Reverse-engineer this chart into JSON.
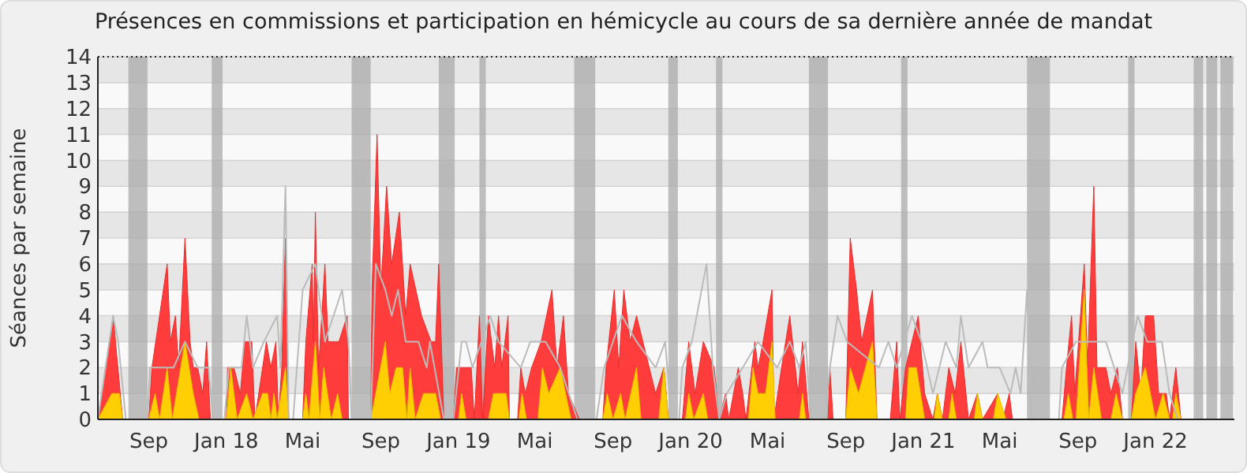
{
  "chart_data": {
    "type": "area",
    "title": "Présences en commissions et participation en hémicycle au cours de sa dernière année de mandat",
    "ylabel": "Séances par semaine",
    "xlim": [
      "2017-06-13",
      "2022-05-05"
    ],
    "xticks": [
      {
        "value": "2017-09-01",
        "label": "Sep"
      },
      {
        "value": "2018-01-01",
        "label": "Jan 18"
      },
      {
        "value": "2018-05-01",
        "label": "Mai"
      },
      {
        "value": "2018-09-01",
        "label": "Sep"
      },
      {
        "value": "2019-01-01",
        "label": "Jan 19"
      },
      {
        "value": "2019-05-01",
        "label": "Mai"
      },
      {
        "value": "2019-09-01",
        "label": "Sep"
      },
      {
        "value": "2020-01-01",
        "label": "Jan 20"
      },
      {
        "value": "2020-05-01",
        "label": "Mai"
      },
      {
        "value": "2020-09-01",
        "label": "Sep"
      },
      {
        "value": "2021-01-01",
        "label": "Jan 21"
      },
      {
        "value": "2021-05-01",
        "label": "Mai"
      },
      {
        "value": "2021-09-01",
        "label": "Sep"
      },
      {
        "value": "2022-01-01",
        "label": "Jan 22"
      }
    ],
    "ylim": [
      0,
      14
    ],
    "yticks": [
      0,
      1,
      2,
      3,
      4,
      5,
      6,
      7,
      8,
      9,
      10,
      11,
      12,
      13,
      14
    ],
    "grid": "y",
    "bands": [
      {
        "axis": "x",
        "from": "2017-07-31",
        "to": "2017-08-30",
        "color": "#aaaaaa"
      },
      {
        "axis": "x",
        "from": "2017-12-09",
        "to": "2017-12-26",
        "color": "#aaaaaa"
      },
      {
        "axis": "x",
        "from": "2018-07-17",
        "to": "2018-08-16",
        "color": "#aaaaaa"
      },
      {
        "axis": "x",
        "from": "2018-12-01",
        "to": "2018-12-26",
        "color": "#aaaaaa"
      },
      {
        "axis": "x",
        "from": "2019-02-03",
        "to": "2019-02-13",
        "color": "#aaaaaa"
      },
      {
        "axis": "x",
        "from": "2019-07-02",
        "to": "2019-08-04",
        "color": "#aaaaaa"
      },
      {
        "axis": "x",
        "from": "2019-11-27",
        "to": "2019-12-12",
        "color": "#aaaaaa"
      },
      {
        "axis": "x",
        "from": "2020-02-10",
        "to": "2020-02-20",
        "color": "#aaaaaa"
      },
      {
        "axis": "x",
        "from": "2020-07-05",
        "to": "2020-08-04",
        "color": "#aaaaaa"
      },
      {
        "axis": "x",
        "from": "2020-11-27",
        "to": "2020-12-07",
        "color": "#aaaaaa"
      },
      {
        "axis": "x",
        "from": "2021-06-13",
        "to": "2021-07-19",
        "color": "#aaaaaa"
      },
      {
        "axis": "x",
        "from": "2021-11-19",
        "to": "2021-11-29",
        "color": "#aaaaaa"
      },
      {
        "axis": "x",
        "from": "2022-03-02",
        "to": "2022-03-17",
        "color": "#aaaaaa"
      },
      {
        "axis": "x",
        "from": "2022-03-22",
        "to": "2022-04-08",
        "color": "#aaaaaa"
      },
      {
        "axis": "x",
        "from": "2022-04-13",
        "to": "2022-05-03",
        "color": "#aaaaaa"
      }
    ],
    "series": [
      {
        "color": "#ff3333",
        "x": [
          "2017-06-13",
          "2017-07-07",
          "2017-07-22",
          "2017-09-01",
          "2017-09-06",
          "2017-09-30",
          "2017-10-05",
          "2017-10-13",
          "2017-10-18",
          "2017-10-28",
          "2017-11-05",
          "2017-11-10",
          "2017-11-17",
          "2017-11-25",
          "2017-12-01",
          "2017-12-07",
          "2018-01-01",
          "2018-01-03",
          "2018-01-13",
          "2018-01-23",
          "2018-01-30",
          "2018-02-10",
          "2018-02-15",
          "2018-02-27",
          "2018-03-05",
          "2018-03-12",
          "2018-03-20",
          "2018-03-24",
          "2018-03-29",
          "2018-04-04",
          "2018-04-09",
          "2018-05-01",
          "2018-05-06",
          "2018-05-16",
          "2018-05-18",
          "2018-05-21",
          "2018-05-26",
          "2018-06-05",
          "2018-06-10",
          "2018-06-27",
          "2018-07-10",
          "2018-07-12",
          "2018-08-16",
          "2018-08-18",
          "2018-08-26",
          "2018-09-01",
          "2018-09-10",
          "2018-09-18",
          "2018-09-30",
          "2018-10-10",
          "2018-10-17",
          "2018-11-04",
          "2018-11-19",
          "2018-11-26",
          "2018-12-01",
          "2018-12-09",
          "2018-12-24",
          "2018-12-29",
          "2019-01-06",
          "2019-01-21",
          "2019-01-26",
          "2019-02-03",
          "2019-02-08",
          "2019-02-17",
          "2019-02-27",
          "2019-03-05",
          "2019-03-10",
          "2019-03-20",
          "2019-03-22",
          "2019-04-04",
          "2019-04-09",
          "2019-04-16",
          "2019-04-26",
          "2019-05-11",
          "2019-05-28",
          "2019-06-05",
          "2019-06-15",
          "2019-06-23",
          "2019-07-10",
          "2019-08-16",
          "2019-08-21",
          "2019-09-03",
          "2019-09-10",
          "2019-09-18",
          "2019-09-28",
          "2019-10-08",
          "2019-10-18",
          "2019-11-07",
          "2019-11-20",
          "2019-11-27",
          "2019-12-19",
          "2019-12-29",
          "2020-01-08",
          "2020-01-21",
          "2020-02-07",
          "2020-02-15",
          "2020-02-25",
          "2020-03-01",
          "2020-03-16",
          "2020-03-23",
          "2020-03-28",
          "2020-04-11",
          "2020-04-16",
          "2020-04-24",
          "2020-05-08",
          "2020-05-11",
          "2020-05-23",
          "2020-06-05",
          "2020-06-18",
          "2020-06-25",
          "2020-07-05",
          "2020-08-04",
          "2020-08-07",
          "2020-08-12",
          "2020-09-01",
          "2020-09-08",
          "2020-09-18",
          "2020-09-26",
          "2020-10-13",
          "2020-10-20",
          "2020-11-10",
          "2020-11-20",
          "2020-11-25",
          "2020-12-04",
          "2020-12-24",
          "2021-01-03",
          "2021-01-16",
          "2021-01-23",
          "2021-01-31",
          "2021-02-10",
          "2021-02-20",
          "2021-03-01",
          "2021-03-13",
          "2021-03-27",
          "2021-04-04",
          "2021-04-28",
          "2021-05-06",
          "2021-05-16",
          "2021-05-21",
          "2021-08-07",
          "2021-08-14",
          "2021-08-22",
          "2021-08-27",
          "2021-09-11",
          "2021-09-16",
          "2021-09-26",
          "2021-10-01",
          "2021-10-15",
          "2021-10-23",
          "2021-11-02",
          "2021-11-10",
          "2021-11-24",
          "2021-12-01",
          "2021-12-09",
          "2021-12-16",
          "2021-12-29",
          "2022-01-06",
          "2022-01-18",
          "2022-01-23",
          "2022-02-02",
          "2022-02-10",
          "2022-05-05"
        ],
        "values": [
          0,
          4,
          0,
          0,
          2,
          6,
          3,
          4,
          2,
          7,
          3,
          2,
          2,
          1,
          3,
          0,
          0,
          2,
          2,
          1,
          3,
          3,
          0,
          2,
          3,
          2,
          3,
          0,
          2,
          7,
          0,
          0,
          3,
          6,
          3,
          8,
          2,
          6,
          3,
          3,
          4,
          0,
          0,
          5,
          11,
          5,
          9,
          6,
          8,
          4,
          6,
          4,
          3,
          3,
          6,
          0,
          0,
          2,
          2,
          2,
          0,
          4,
          0,
          4,
          2,
          4,
          2,
          4,
          0,
          0,
          2,
          1,
          2,
          3,
          5,
          2,
          4,
          1,
          0,
          0,
          2,
          5,
          2,
          5,
          3,
          4,
          3,
          1,
          2,
          0,
          0,
          3,
          1,
          3,
          2,
          0,
          1,
          0,
          2,
          1,
          0,
          3,
          2,
          3,
          5,
          0,
          2,
          4,
          1,
          3,
          0,
          0,
          2,
          0,
          0,
          7,
          5,
          3,
          5,
          0,
          0,
          3,
          0,
          2,
          4,
          1,
          0,
          1,
          0,
          2,
          1,
          3,
          0,
          1,
          0,
          1,
          0,
          1,
          0,
          0,
          2,
          4,
          1,
          6,
          2,
          9,
          2,
          2,
          1,
          2,
          0,
          0,
          3,
          1,
          4,
          4,
          1,
          1,
          0,
          2,
          0,
          0
        ]
      },
      {
        "color": "#ffd700",
        "x": [
          "2017-06-13",
          "2017-07-05",
          "2017-07-17",
          "2017-07-22",
          "2017-09-01",
          "2017-09-11",
          "2017-09-18",
          "2017-09-30",
          "2017-10-08",
          "2017-10-28",
          "2017-11-10",
          "2017-11-19",
          "2018-01-01",
          "2018-01-08",
          "2018-01-18",
          "2018-02-02",
          "2018-02-12",
          "2018-02-27",
          "2018-03-07",
          "2018-03-12",
          "2018-03-17",
          "2018-03-22",
          "2018-04-04",
          "2018-04-09",
          "2018-05-01",
          "2018-05-06",
          "2018-05-11",
          "2018-05-21",
          "2018-05-28",
          "2018-06-03",
          "2018-06-15",
          "2018-06-25",
          "2018-07-02",
          "2018-08-16",
          "2018-08-24",
          "2018-09-08",
          "2018-09-15",
          "2018-09-25",
          "2018-10-05",
          "2018-10-12",
          "2018-10-17",
          "2018-10-25",
          "2018-11-07",
          "2018-11-26",
          "2018-12-04",
          "2019-01-01",
          "2019-01-06",
          "2019-01-13",
          "2019-02-17",
          "2019-02-25",
          "2019-03-17",
          "2019-03-22",
          "2019-04-06",
          "2019-04-11",
          "2019-04-18",
          "2019-05-06",
          "2019-05-13",
          "2019-05-23",
          "2019-06-10",
          "2019-06-27",
          "2019-08-16",
          "2019-08-23",
          "2019-09-01",
          "2019-09-13",
          "2019-09-20",
          "2019-10-08",
          "2019-10-15",
          "2019-11-12",
          "2019-11-20",
          "2019-11-27",
          "2019-12-24",
          "2019-12-29",
          "2020-01-06",
          "2020-01-21",
          "2020-01-28",
          "2020-04-01",
          "2020-04-08",
          "2020-04-16",
          "2020-04-28",
          "2020-05-08",
          "2020-05-13",
          "2020-06-20",
          "2020-06-25",
          "2020-06-30",
          "2020-09-01",
          "2020-09-08",
          "2020-09-21",
          "2020-10-13",
          "2020-10-20",
          "2020-12-04",
          "2020-12-09",
          "2020-12-21",
          "2021-01-03",
          "2021-01-18",
          "2021-01-23",
          "2021-01-31",
          "2021-02-10",
          "2021-02-15",
          "2021-02-22",
          "2021-03-22",
          "2021-03-27",
          "2021-04-04",
          "2021-04-21",
          "2021-04-28",
          "2021-05-11",
          "2021-08-10",
          "2021-08-17",
          "2021-08-24",
          "2021-08-29",
          "2021-09-11",
          "2021-09-18",
          "2021-09-26",
          "2021-10-08",
          "2021-10-23",
          "2021-10-31",
          "2021-11-10",
          "2021-11-24",
          "2021-12-01",
          "2021-12-16",
          "2022-01-01",
          "2022-01-13",
          "2022-01-23",
          "2022-01-28",
          "2022-02-02",
          "2022-02-10",
          "2022-05-05"
        ],
        "values": [
          0,
          1,
          1,
          0,
          0,
          1,
          0,
          2,
          0,
          3,
          1,
          0,
          0,
          2,
          0,
          1,
          0,
          1,
          1,
          0,
          1,
          0,
          2,
          0,
          0,
          1,
          0,
          3,
          0,
          2,
          0,
          1,
          0,
          0,
          1,
          3,
          1,
          2,
          2,
          0,
          2,
          0,
          1,
          1,
          0,
          0,
          1,
          0,
          0,
          1,
          1,
          0,
          0,
          1,
          0,
          0,
          2,
          1,
          2,
          0,
          0,
          1,
          0,
          1,
          0,
          2,
          0,
          0,
          2,
          0,
          0,
          1,
          0,
          1,
          0,
          0,
          2,
          1,
          1,
          3,
          0,
          0,
          1,
          0,
          0,
          2,
          1,
          3,
          0,
          0,
          2,
          2,
          0,
          0,
          1,
          0,
          0,
          1,
          0,
          0,
          1,
          0,
          0,
          1,
          0,
          0,
          1,
          0,
          0,
          5,
          0,
          2,
          0,
          0,
          1,
          0,
          0,
          1,
          2,
          0,
          1,
          0,
          0,
          1,
          0,
          0
        ]
      },
      {
        "type": "line",
        "color": "#bbbbbb",
        "x": [
          "2017-06-13",
          "2017-07-07",
          "2017-07-15",
          "2017-07-27",
          "2017-08-30",
          "2017-09-03",
          "2017-10-10",
          "2017-10-28",
          "2017-11-17",
          "2017-12-04",
          "2017-12-11",
          "2017-12-29",
          "2018-01-05",
          "2018-01-25",
          "2018-02-02",
          "2018-02-12",
          "2018-03-01",
          "2018-03-22",
          "2018-03-27",
          "2018-04-04",
          "2018-04-09",
          "2018-04-16",
          "2018-05-01",
          "2018-05-21",
          "2018-06-05",
          "2018-07-02",
          "2018-07-12",
          "2018-07-17",
          "2018-08-16",
          "2018-08-24",
          "2018-09-08",
          "2018-09-18",
          "2018-09-28",
          "2018-10-10",
          "2018-10-30",
          "2018-11-12",
          "2018-11-17",
          "2018-12-09",
          "2018-12-24",
          "2019-01-06",
          "2019-01-13",
          "2019-01-23",
          "2019-02-20",
          "2019-03-05",
          "2019-04-09",
          "2019-04-24",
          "2019-05-18",
          "2019-06-10",
          "2019-07-07",
          "2019-08-06",
          "2019-08-18",
          "2019-09-15",
          "2019-10-08",
          "2019-11-07",
          "2019-11-22",
          "2019-12-02",
          "2019-12-14",
          "2019-12-19",
          "2020-01-03",
          "2020-01-26",
          "2020-02-05",
          "2020-02-15",
          "2020-02-27",
          "2020-03-23",
          "2020-04-16",
          "2020-05-16",
          "2020-06-05",
          "2020-06-20",
          "2020-06-30",
          "2020-07-08",
          "2020-07-30",
          "2020-08-07",
          "2020-08-19",
          "2020-09-03",
          "2020-10-23",
          "2020-11-07",
          "2020-11-20",
          "2020-12-14",
          "2020-12-29",
          "2021-01-16",
          "2021-02-05",
          "2021-02-22",
          "2021-03-01",
          "2021-03-13",
          "2021-04-04",
          "2021-04-12",
          "2021-05-01",
          "2021-05-18",
          "2021-05-26",
          "2021-06-03",
          "2021-06-13",
          "2021-06-20",
          "2021-08-02",
          "2021-08-07",
          "2021-08-29",
          "2021-10-15",
          "2021-11-10",
          "2021-12-04",
          "2021-12-19",
          "2022-01-11",
          "2022-01-23",
          "2022-02-05",
          "2022-05-05"
        ],
        "values": [
          0,
          4,
          3,
          0,
          0,
          2,
          2,
          3,
          2,
          2,
          0,
          0,
          2,
          2,
          4,
          2,
          3,
          4,
          2,
          9,
          0,
          0,
          5,
          6,
          3,
          5,
          3,
          0,
          0,
          6,
          5,
          4,
          5,
          3,
          3,
          2,
          3,
          0,
          0,
          3,
          3,
          2,
          4,
          3,
          2,
          3,
          3,
          2,
          0,
          0,
          2,
          4,
          3,
          2,
          3,
          0,
          0,
          2,
          3,
          6,
          2,
          0,
          1,
          2,
          3,
          2,
          3,
          2,
          3,
          0,
          0,
          2,
          4,
          3,
          2,
          3,
          2,
          4,
          3,
          1,
          3,
          2,
          4,
          2,
          3,
          2,
          2,
          1,
          2,
          1,
          5,
          0,
          0,
          2,
          3,
          3,
          1,
          4,
          3,
          3,
          1,
          0,
          0
        ]
      }
    ]
  }
}
